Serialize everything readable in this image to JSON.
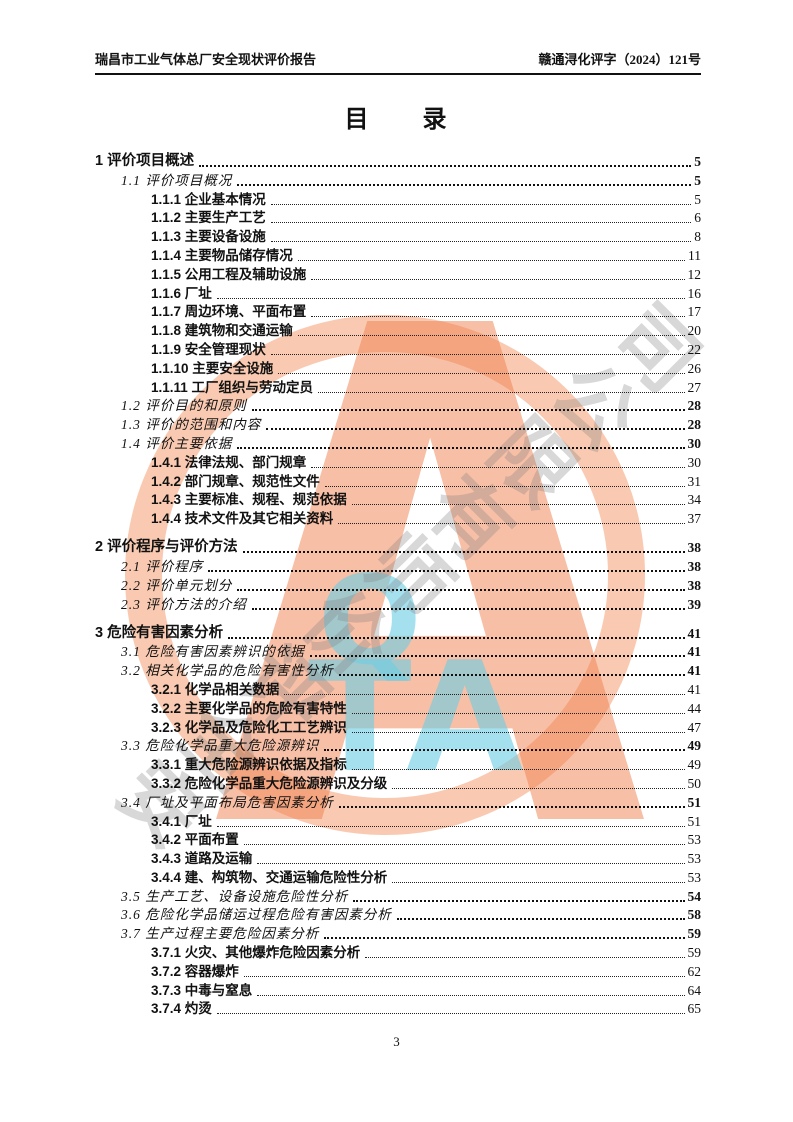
{
  "header": {
    "left": "瑞昌市工业气体总厂安全现状评价报告",
    "right": "赣通浔化评字（2024）121号"
  },
  "title": "目　　录",
  "toc": {
    "rows": [
      {
        "level": 1,
        "num": "1",
        "text": "评价项目概述",
        "page": "5"
      },
      {
        "level": 2,
        "num": "1.1",
        "text": "评价项目概况",
        "page": "5"
      },
      {
        "level": 3,
        "num": "1.1.1",
        "text": "企业基本情况",
        "page": "5"
      },
      {
        "level": 3,
        "num": "1.1.2",
        "text": "主要生产工艺",
        "page": "6"
      },
      {
        "level": 3,
        "num": "1.1.3",
        "text": "主要设备设施",
        "page": "8"
      },
      {
        "level": 3,
        "num": "1.1.4",
        "text": "主要物品储存情况",
        "page": "11"
      },
      {
        "level": 3,
        "num": "1.1.5",
        "text": "公用工程及辅助设施",
        "page": "12"
      },
      {
        "level": 3,
        "num": "1.1.6",
        "text": "厂址",
        "page": "16"
      },
      {
        "level": 3,
        "num": "1.1.7",
        "text": "周边环境、平面布置",
        "page": "17"
      },
      {
        "level": 3,
        "num": "1.1.8",
        "text": "建筑物和交通运输",
        "page": "20"
      },
      {
        "level": 3,
        "num": "1.1.9",
        "text": "安全管理现状",
        "page": "22"
      },
      {
        "level": 3,
        "num": "1.1.10",
        "text": "主要安全设施",
        "page": "26"
      },
      {
        "level": 3,
        "num": "1.1.11",
        "text": "工厂组织与劳动定员",
        "page": "27"
      },
      {
        "level": 2,
        "num": "1.2",
        "text": "评价目的和原则",
        "page": "28"
      },
      {
        "level": 2,
        "num": "1.3",
        "text": "评价的范围和内容",
        "page": "28"
      },
      {
        "level": 2,
        "num": "1.4",
        "text": "评价主要依据",
        "page": "30"
      },
      {
        "level": 3,
        "num": "1.4.1",
        "text": "法律法规、部门规章",
        "page": "30"
      },
      {
        "level": 3,
        "num": "1.4.2",
        "text": "部门规章、规范性文件",
        "page": "31"
      },
      {
        "level": 3,
        "num": "1.4.3",
        "text": "主要标准、规程、规范依据",
        "page": "34"
      },
      {
        "level": 3,
        "num": "1.4.4",
        "text": "技术文件及其它相关资料",
        "page": "37"
      },
      {
        "level": 1,
        "num": "2",
        "text": "评价程序与评价方法",
        "page": "38",
        "gap_before": true
      },
      {
        "level": 2,
        "num": "2.1",
        "text": "评价程序",
        "page": "38"
      },
      {
        "level": 2,
        "num": "2.2",
        "text": "评价单元划分",
        "page": "38"
      },
      {
        "level": 2,
        "num": "2.3",
        "text": "评价方法的介绍",
        "page": "39"
      },
      {
        "level": 1,
        "num": "3",
        "text": "危险有害因素分析",
        "page": "41",
        "gap_before": true
      },
      {
        "level": 2,
        "num": "3.1",
        "text": "危险有害因素辨识的依据",
        "page": "41"
      },
      {
        "level": 2,
        "num": "3.2",
        "text": "相关化学品的危险有害性分析",
        "page": "41"
      },
      {
        "level": 3,
        "num": "3.2.1",
        "text": "化学品相关数据",
        "page": "41"
      },
      {
        "level": 3,
        "num": "3.2.2",
        "text": "主要化学品的危险有害特性",
        "page": "44"
      },
      {
        "level": 3,
        "num": "3.2.3",
        "text": "化学品及危险化工工艺辨识",
        "page": "47"
      },
      {
        "level": 2,
        "num": "3.3",
        "text": "危险化学品重大危险源辨识",
        "page": "49"
      },
      {
        "level": 3,
        "num": "3.3.1",
        "text": "重大危险源辨识依据及指标",
        "page": "49"
      },
      {
        "level": 3,
        "num": "3.3.2",
        "text": "危险化学品重大危险源辨识及分级",
        "page": "50"
      },
      {
        "level": 2,
        "num": "3.4",
        "text": "厂址及平面布局危害因素分析",
        "page": "51"
      },
      {
        "level": 3,
        "num": "3.4.1",
        "text": "厂址",
        "page": "51"
      },
      {
        "level": 3,
        "num": "3.4.2",
        "text": "平面布置",
        "page": "53"
      },
      {
        "level": 3,
        "num": "3.4.3",
        "text": "道路及运输",
        "page": "53"
      },
      {
        "level": 3,
        "num": "3.4.4",
        "text": "建、构筑物、交通运输危险性分析",
        "page": "53"
      },
      {
        "level": 2,
        "num": "3.5",
        "text": "生产工艺、设备设施危险性分析",
        "page": "54"
      },
      {
        "level": 2,
        "num": "3.6",
        "text": "危险化学品储运过程危险有害因素分析",
        "page": "58"
      },
      {
        "level": 2,
        "num": "3.7",
        "text": "生产过程主要危险因素分析",
        "page": "59"
      },
      {
        "level": 3,
        "num": "3.7.1",
        "text": "火灾、其他爆炸危险因素分析",
        "page": "59"
      },
      {
        "level": 3,
        "num": "3.7.2",
        "text": "容器爆炸",
        "page": "62"
      },
      {
        "level": 3,
        "num": "3.7.3",
        "text": "中毒与窒息",
        "page": "64"
      },
      {
        "level": 3,
        "num": "3.7.4",
        "text": "灼烫",
        "page": "65"
      }
    ]
  },
  "footer": {
    "page_number": "3"
  },
  "watermark": {
    "letter_big": "A",
    "letter_q": "Q",
    "letters_ta": "TA",
    "diagonal_text": "安全评价师有限公司",
    "colors": {
      "ring_orange": "#f39664",
      "letters_cyan": "#6ecde4",
      "glyph_gray": "#7d7d7d"
    }
  }
}
